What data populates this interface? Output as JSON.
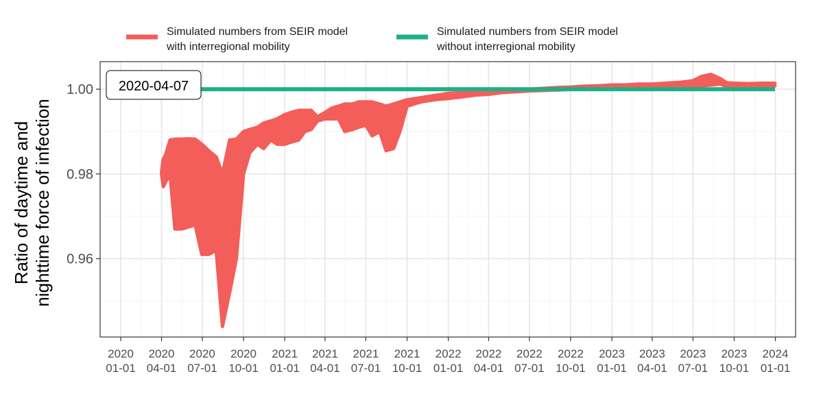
{
  "chart_data": {
    "type": "line",
    "title": "",
    "xlabel": "",
    "ylabel_lines": [
      "Ratio of daytime and",
      "nighttime force of infection"
    ],
    "x_ticks": [
      {
        "date": "2020-01-01",
        "line1": "2020",
        "line2": "01-01"
      },
      {
        "date": "2020-04-01",
        "line1": "2020",
        "line2": "04-01"
      },
      {
        "date": "2020-07-01",
        "line1": "2020",
        "line2": "07-01"
      },
      {
        "date": "2020-10-01",
        "line1": "2020",
        "line2": "10-01"
      },
      {
        "date": "2021-01-01",
        "line1": "2021",
        "line2": "01-01"
      },
      {
        "date": "2021-04-01",
        "line1": "2021",
        "line2": "04-01"
      },
      {
        "date": "2021-07-01",
        "line1": "2021",
        "line2": "07-01"
      },
      {
        "date": "2021-10-01",
        "line1": "2021",
        "line2": "10-01"
      },
      {
        "date": "2022-01-01",
        "line1": "2022",
        "line2": "01-01"
      },
      {
        "date": "2022-04-01",
        "line1": "2022",
        "line2": "04-01"
      },
      {
        "date": "2022-07-01",
        "line1": "2022",
        "line2": "07-01"
      },
      {
        "date": "2022-10-01",
        "line1": "2022",
        "line2": "10-01"
      },
      {
        "date": "2023-01-01",
        "line1": "2023",
        "line2": "01-01"
      },
      {
        "date": "2023-04-01",
        "line1": "2023",
        "line2": "04-01"
      },
      {
        "date": "2023-07-01",
        "line1": "2023",
        "line2": "07-01"
      },
      {
        "date": "2023-10-01",
        "line1": "2023",
        "line2": "10-01"
      },
      {
        "date": "2024-01-01",
        "line1": "2024",
        "line2": "01-01"
      }
    ],
    "y_ticks": [
      0.96,
      0.98,
      1.0
    ],
    "y_tick_labels": [
      "0.96",
      "0.98",
      "1.00"
    ],
    "xlim": [
      "2019-11-16",
      "2024-02-15"
    ],
    "ylim": [
      0.9415,
      1.0065
    ],
    "grid": true,
    "legend_position": "top",
    "legend": [
      {
        "label_lines": [
          "Simulated numbers from SEIR model",
          "with interregional mobility"
        ],
        "color": "#F35E5A"
      },
      {
        "label_lines": [
          "Simulated numbers from SEIR model",
          "without interregional mobility"
        ],
        "color": "#1FAF86"
      }
    ],
    "annotation": {
      "label": "2020-04-07",
      "date": "2020-04-07",
      "value": 0.9995,
      "marker_color": "#FF0000"
    },
    "series": [
      {
        "color": "#F35E5A",
        "x": [
          "2020-04-01",
          "2020-04-05",
          "2020-04-10",
          "2020-04-20",
          "2020-05-01",
          "2020-05-15",
          "2020-06-01",
          "2020-06-15",
          "2020-06-30",
          "2020-07-15",
          "2020-08-01",
          "2020-08-15",
          "2020-08-31",
          "2020-09-15",
          "2020-10-01",
          "2020-10-15",
          "2020-11-01",
          "2020-11-15",
          "2020-12-01",
          "2020-12-15",
          "2021-01-01",
          "2021-01-15",
          "2021-02-01",
          "2021-02-15",
          "2021-03-01",
          "2021-03-15",
          "2021-04-01",
          "2021-04-15",
          "2021-05-01",
          "2021-05-15",
          "2021-06-01",
          "2021-06-15",
          "2021-07-01",
          "2021-07-15",
          "2021-08-01",
          "2021-08-15",
          "2021-09-01",
          "2021-09-15",
          "2021-10-01",
          "2021-11-01",
          "2021-12-01",
          "2022-01-01",
          "2022-02-01",
          "2022-03-01",
          "2022-04-01",
          "2022-05-01",
          "2022-06-01",
          "2022-07-01",
          "2022-08-01",
          "2022-09-01",
          "2022-10-01",
          "2022-11-01",
          "2022-12-01",
          "2023-01-01",
          "2023-02-01",
          "2023-03-01",
          "2023-04-01",
          "2023-05-01",
          "2023-06-01",
          "2023-07-01",
          "2023-07-20",
          "2023-08-10",
          "2023-08-31",
          "2023-09-15",
          "2023-10-01",
          "2023-11-01",
          "2023-12-01",
          "2023-12-31"
        ],
        "upper": [
          0.9805,
          0.9835,
          0.9845,
          0.988,
          0.9882,
          0.9882,
          0.9883,
          0.9882,
          0.987,
          0.9855,
          0.984,
          0.98,
          0.988,
          0.9882,
          0.99,
          0.9905,
          0.991,
          0.992,
          0.9925,
          0.993,
          0.994,
          0.9945,
          0.995,
          0.995,
          0.995,
          0.9935,
          0.9945,
          0.9955,
          0.996,
          0.9965,
          0.9965,
          0.997,
          0.997,
          0.997,
          0.9965,
          0.996,
          0.9965,
          0.997,
          0.9975,
          0.998,
          0.9985,
          0.999,
          0.9992,
          0.9994,
          0.9996,
          0.9998,
          1.0,
          1.0,
          1.0002,
          1.0004,
          1.0005,
          1.0007,
          1.0008,
          1.001,
          1.001,
          1.0012,
          1.0012,
          1.0014,
          1.0016,
          1.002,
          1.003,
          1.0035,
          1.0025,
          1.0015,
          1.0014,
          1.0013,
          1.0014,
          1.0014
        ],
        "lower": [
          0.98,
          0.977,
          0.978,
          0.98,
          0.967,
          0.967,
          0.9675,
          0.968,
          0.961,
          0.961,
          0.962,
          0.944,
          0.952,
          0.96,
          0.98,
          0.985,
          0.987,
          0.986,
          0.988,
          0.987,
          0.987,
          0.9875,
          0.988,
          0.99,
          0.9905,
          0.9925,
          0.993,
          0.993,
          0.993,
          0.99,
          0.9905,
          0.991,
          0.9915,
          0.989,
          0.99,
          0.9855,
          0.986,
          0.99,
          0.996,
          0.997,
          0.9975,
          0.9978,
          0.9982,
          0.9986,
          0.9988,
          0.9992,
          0.9994,
          0.9996,
          0.9997,
          0.9998,
          1.0,
          1.0,
          1.0001,
          1.0003,
          1.0004,
          1.0005,
          1.0006,
          1.0007,
          1.0008,
          1.0005,
          1.0008,
          1.001,
          1.0012,
          1.0006,
          1.0007,
          1.0008,
          1.0008,
          1.0008
        ]
      },
      {
        "color": "#1FAF86",
        "x": [
          "2020-04-01",
          "2023-12-31"
        ],
        "values": [
          1.0,
          1.0
        ]
      }
    ]
  }
}
